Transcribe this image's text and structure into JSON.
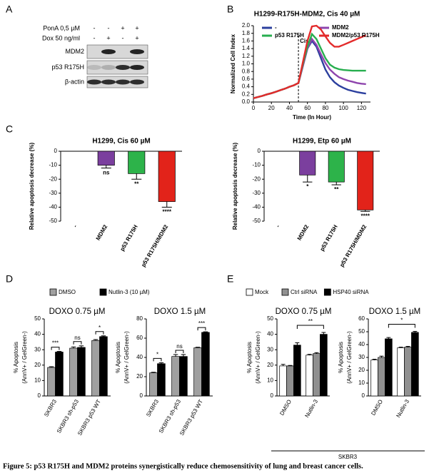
{
  "figure": {
    "panel_labels": [
      "A",
      "B",
      "C",
      "D",
      "E"
    ],
    "caption": "Figure 5: p53 R175H and MDM2 proteins synergistically reduce chemosensitivity of lung and breast cancer cells.",
    "blot": {
      "treatments": [
        {
          "label": "PonA 0,5 µM",
          "signs": [
            "-",
            "-",
            "+",
            "+"
          ]
        },
        {
          "label": "Dox 50 ng/ml",
          "signs": [
            "-",
            "+",
            "-",
            "+"
          ]
        }
      ],
      "proteins": [
        "MDM2",
        "p53 R175H",
        "β-actin"
      ]
    },
    "group_label": "SKBR3"
  },
  "chart_data": [
    {
      "type": "line",
      "title": "H1299-R175H-MDM2, Cis 40 µM",
      "xlabel": "Time (In Hour)",
      "ylabel": "Normalized Cell Index",
      "annotation": "Cis",
      "vline": 50,
      "x": [
        0,
        5,
        10,
        15,
        20,
        25,
        30,
        35,
        40,
        45,
        50,
        55,
        60,
        65,
        70,
        75,
        80,
        85,
        90,
        95,
        100,
        105,
        110,
        115,
        120,
        125
      ],
      "series": [
        {
          "name": "-",
          "color": "#2b3f9e",
          "values": [
            0.1,
            0.13,
            0.16,
            0.2,
            0.23,
            0.27,
            0.31,
            0.35,
            0.4,
            0.44,
            0.5,
            0.95,
            1.4,
            1.6,
            1.45,
            1.15,
            0.85,
            0.65,
            0.52,
            0.43,
            0.37,
            0.32,
            0.29,
            0.26,
            0.24,
            0.22
          ]
        },
        {
          "name": "MDM2",
          "color": "#8e44ad",
          "values": [
            0.1,
            0.13,
            0.16,
            0.2,
            0.23,
            0.27,
            0.31,
            0.35,
            0.4,
            0.44,
            0.5,
            0.95,
            1.4,
            1.65,
            1.5,
            1.25,
            1.02,
            0.85,
            0.74,
            0.65,
            0.6,
            0.56,
            0.53,
            0.5,
            0.48,
            0.47
          ]
        },
        {
          "name": "p53 R175H",
          "color": "#27ae4f",
          "values": [
            0.1,
            0.13,
            0.16,
            0.2,
            0.23,
            0.27,
            0.31,
            0.35,
            0.4,
            0.44,
            0.5,
            1.0,
            1.45,
            1.78,
            1.65,
            1.4,
            1.15,
            0.98,
            0.9,
            0.86,
            0.84,
            0.83,
            0.82,
            0.82,
            0.82,
            0.82
          ]
        },
        {
          "name": "MDM2/p53 R175H",
          "color": "#e32b2b",
          "values": [
            0.1,
            0.13,
            0.16,
            0.2,
            0.23,
            0.27,
            0.31,
            0.35,
            0.4,
            0.44,
            0.5,
            1.05,
            1.6,
            1.98,
            2.0,
            1.9,
            1.72,
            1.55,
            1.45,
            1.45,
            1.5,
            1.55,
            1.6,
            1.65,
            1.7,
            1.75
          ]
        }
      ],
      "xlim": [
        0,
        130
      ],
      "xticks": [
        0,
        20,
        40,
        60,
        80,
        100,
        120
      ],
      "ylim": [
        0,
        2
      ],
      "yticks": [
        {
          "value": 0,
          "label": "0.0"
        },
        0.2,
        0.4,
        0.6,
        0.8,
        {
          "value": 1,
          "label": "1.0"
        },
        1.2,
        1.4,
        1.6,
        1.8,
        {
          "value": 2,
          "label": "2.0"
        }
      ]
    },
    {
      "type": "bar",
      "title": "H1299, Cis 60 µM",
      "ylabel": "Relative apoptosis decrease (%)",
      "categories": [
        "-",
        "MDM2",
        "p53 R175H",
        "p53 R175H/MDM2"
      ],
      "values": [
        0,
        -10,
        -16,
        -36
      ],
      "errors": [
        null,
        2,
        4,
        4
      ],
      "colors": [
        "#000000",
        "#7b3f9e",
        "#2db34a",
        "#e2231a"
      ],
      "significance": [
        null,
        "ns",
        "**",
        "****"
      ],
      "ylim": [
        -50,
        0
      ],
      "yticks": [
        -50,
        -40,
        -30,
        -20,
        -10,
        0
      ]
    },
    {
      "type": "bar",
      "title": "H1299, Etp 60 µM",
      "ylabel": "Relative apoptosis decrease (%)",
      "categories": [
        "-",
        "MDM2",
        "p53 R175H",
        "p53 R175H/MDM2"
      ],
      "values": [
        0,
        -17,
        -22,
        -42
      ],
      "errors": [
        null,
        5,
        2,
        1
      ],
      "colors": [
        "#000000",
        "#7b3f9e",
        "#2db34a",
        "#e2231a"
      ],
      "significance": [
        null,
        "*",
        "**",
        "****"
      ],
      "ylim": [
        -50,
        0
      ],
      "yticks": [
        -50,
        -40,
        -30,
        -20,
        -10,
        0
      ]
    },
    {
      "type": "bar",
      "title": "DOXO 0.75 µM",
      "ylabel": [
        "% Apoptosis",
        "(AnnV+ / GelGreen-)"
      ],
      "categories": [
        "SKBR3",
        "SKBR3 sh-p53",
        "SKBR3 p53 WT"
      ],
      "series": [
        {
          "name": "DMSO",
          "color": "#a0a0a0",
          "values": [
            18.5,
            31,
            36
          ],
          "errors": [
            0.5,
            0.8,
            0.6
          ]
        },
        {
          "name": "Nutlin-3 (10 µM)",
          "color": "#000000",
          "values": [
            28.5,
            31.5,
            38.5
          ],
          "errors": [
            0.4,
            1,
            0.5
          ]
        }
      ],
      "significance": [
        "***",
        "ns",
        "*"
      ],
      "ylim": [
        0,
        50
      ],
      "yticks": [
        0,
        10,
        20,
        30,
        40,
        50
      ]
    },
    {
      "type": "bar",
      "title": "DOXO 1.5 µM",
      "ylabel": [
        "% Apoptosis",
        "(AnnV+ / GelGreen-)"
      ],
      "categories": [
        "SKBR3",
        "SKBR3 sh-p53",
        "SKBR3 p53 WT"
      ],
      "series": [
        {
          "name": "DMSO",
          "color": "#a0a0a0",
          "values": [
            24,
            41,
            50
          ],
          "errors": [
            0.6,
            2,
            0.6
          ]
        },
        {
          "name": "Nutlin-3 (10 µM)",
          "color": "#000000",
          "values": [
            33.5,
            41,
            66
          ],
          "errors": [
            1,
            2,
            0.6
          ]
        }
      ],
      "significance": [
        "*",
        "ns",
        "***"
      ],
      "ylim": [
        0,
        80
      ],
      "yticks": [
        0,
        20,
        40,
        60,
        80
      ]
    },
    {
      "type": "bar",
      "title": "DOXO 0.75 µM",
      "ylabel": [
        "% Apoptosis",
        "(AnnV+ / GelGreen-)"
      ],
      "categories": [
        "DMSO",
        "Nutlin-3"
      ],
      "series": [
        {
          "name": "Mock",
          "color": "#ffffff",
          "values": [
            19.5,
            26.5
          ],
          "errors": [
            1,
            0.5
          ]
        },
        {
          "name": "Ctrl siRNA",
          "color": "#909090",
          "values": [
            19.5,
            27.5
          ],
          "errors": [
            0.3,
            0.6
          ]
        },
        {
          "name": "HSP40 siRNA",
          "color": "#000000",
          "values": [
            33,
            40
          ],
          "errors": [
            1.5,
            1.2
          ]
        }
      ],
      "significance": "**",
      "ylim": [
        0,
        50
      ],
      "yticks": [
        0,
        10,
        20,
        30,
        40,
        50
      ]
    },
    {
      "type": "bar",
      "title": "DOXO 1.5 µM",
      "ylabel": [
        "% Apoptosis",
        "(AnnV+ / GelGreen-)"
      ],
      "categories": [
        "DMSO",
        "Nutlin-3"
      ],
      "series": [
        {
          "name": "Mock",
          "color": "#ffffff",
          "values": [
            28,
            37.5
          ],
          "errors": [
            0.6,
            0.5
          ]
        },
        {
          "name": "Ctrl siRNA",
          "color": "#909090",
          "values": [
            30,
            38
          ],
          "errors": [
            1,
            0.6
          ]
        },
        {
          "name": "HSP40 siRNA",
          "color": "#000000",
          "values": [
            44.5,
            49.5
          ],
          "errors": [
            1,
            0.8
          ]
        }
      ],
      "significance": "*",
      "ylim": [
        0,
        60
      ],
      "yticks": [
        0,
        10,
        20,
        30,
        40,
        50,
        60
      ]
    }
  ]
}
